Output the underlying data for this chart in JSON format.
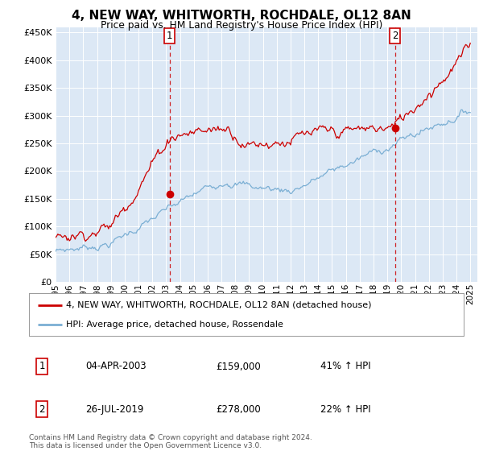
{
  "title": "4, NEW WAY, WHITWORTH, ROCHDALE, OL12 8AN",
  "subtitle": "Price paid vs. HM Land Registry's House Price Index (HPI)",
  "legend_line1": "4, NEW WAY, WHITWORTH, ROCHDALE, OL12 8AN (detached house)",
  "legend_line2": "HPI: Average price, detached house, Rossendale",
  "event1_date": "04-APR-2003",
  "event1_price": "£159,000",
  "event1_hpi": "41% ↑ HPI",
  "event2_date": "26-JUL-2019",
  "event2_price": "£278,000",
  "event2_hpi": "22% ↑ HPI",
  "footer": "Contains HM Land Registry data © Crown copyright and database right 2024.\nThis data is licensed under the Open Government Licence v3.0.",
  "hpi_color": "#7bafd4",
  "price_color": "#cc0000",
  "event_color": "#cc0000",
  "bg_color": "#dce8f5",
  "plot_bg": "#ffffff",
  "ylim": [
    0,
    460000
  ],
  "yticks": [
    0,
    50000,
    100000,
    150000,
    200000,
    250000,
    300000,
    350000,
    400000,
    450000
  ],
  "xlim_start": 1995.0,
  "xlim_end": 2025.5,
  "event1_x": 2003.25,
  "event1_y": 159000,
  "event2_x": 2019.55,
  "event2_y": 278000
}
